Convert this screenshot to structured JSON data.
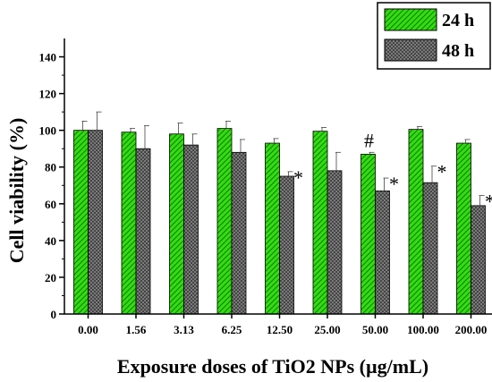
{
  "chart_data": {
    "type": "bar",
    "xlabel": "Exposure doses of TiO2 NPs (µg/mL)",
    "ylabel": "Cell viability (%)",
    "ylim": [
      0,
      150
    ],
    "yticks": [
      0,
      20,
      40,
      60,
      80,
      100,
      120,
      140
    ],
    "categories": [
      "0.00",
      "1.56",
      "3.13",
      "6.25",
      "12.50",
      "25.00",
      "50.00",
      "100.00",
      "200.00"
    ],
    "series": [
      {
        "name": "24 h",
        "color": "#33dd11",
        "pattern": "diagonal-hatch",
        "values": [
          100,
          99,
          98,
          101,
          93,
          99.5,
          87,
          100.5,
          93
        ],
        "errors": [
          5,
          2,
          6,
          4,
          2.5,
          2,
          1,
          1.5,
          2
        ],
        "annotations": [
          "",
          "",
          "",
          "",
          "",
          "",
          "#",
          "",
          ""
        ]
      },
      {
        "name": "48 h",
        "color": "#7a7a7a",
        "pattern": "crosshatch",
        "values": [
          100,
          90,
          92,
          88,
          75,
          78,
          67,
          71.5,
          59
        ],
        "errors": [
          10,
          12.5,
          6,
          7,
          2.5,
          10,
          7,
          9,
          5.5
        ],
        "annotations": [
          "",
          "",
          "",
          "",
          "*",
          "",
          "*",
          "*",
          "*"
        ]
      }
    ],
    "legend": "top-right",
    "grid": false
  }
}
